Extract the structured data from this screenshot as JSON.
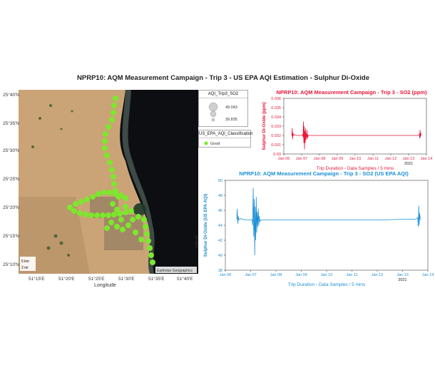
{
  "title": "NPRP10: AQM Measurement Campaign - Trip 3 - US EPA AQI Estimation - Sulphur Di-Oxide",
  "map": {
    "lat_ticks": [
      "25°40'N",
      "25°35'N",
      "25°30'N",
      "25°25'N",
      "25°20'N",
      "25°15'N",
      "25°10'N"
    ],
    "lon_ticks": [
      "51°15'E",
      "51°20'E",
      "51°25'E",
      "51°30'E",
      "51°35'E",
      "51°40'E"
    ],
    "xlabel": "Longitude",
    "ylabel": "Latitude",
    "scale_km": "5 km",
    "scale_mi": "2 mi",
    "attribution": "Earthstar Geographics",
    "track_color": "#7be82c"
  },
  "legend_size": {
    "title": "AQI_Trip3_SO2",
    "max": "49.043",
    "min": "39.835"
  },
  "legend_class": {
    "title": "US_EPA_AQI_Classification",
    "item": "Good",
    "color": "#7be82c"
  },
  "chart_data": [
    {
      "type": "line",
      "title": "NPRP10: AQM Measurement Campaign - Trip 3 - SO2 (ppm)",
      "xlabel": "Trip Duration - Data Samples / 5 mins",
      "ylabel": "Sulphur Di-Oxide (ppm)",
      "x_ticks": [
        "Jan 06",
        "Jan 07",
        "Jan 08",
        "Jan 09",
        "Jan 10",
        "Jan 11",
        "Jan 12",
        "Jan 13",
        "Jan 14"
      ],
      "x_year": "2021",
      "y_ticks": [
        "0.03",
        "0.031",
        "0.032",
        "0.033",
        "0.034",
        "0.035",
        "0.036"
      ],
      "ylim": [
        0.03,
        0.036
      ],
      "color": "#e8183a",
      "series": [
        {
          "values": [
            [
              0.45,
              0.0319
            ],
            [
              0.47,
              0.0328
            ],
            [
              0.49,
              0.0316
            ],
            [
              0.51,
              0.0323
            ],
            [
              0.53,
              0.032
            ],
            [
              0.56,
              0.032
            ],
            [
              0.6,
              0.0321
            ],
            [
              0.7,
              0.032
            ],
            [
              0.8,
              0.032
            ],
            [
              0.9,
              0.032
            ],
            [
              1.0,
              0.032
            ],
            [
              1.05,
              0.0321
            ],
            [
              1.08,
              0.0318
            ],
            [
              1.1,
              0.0335
            ],
            [
              1.12,
              0.0312
            ],
            [
              1.14,
              0.033
            ],
            [
              1.16,
              0.0305
            ],
            [
              1.18,
              0.0325
            ],
            [
              1.2,
              0.0312
            ],
            [
              1.22,
              0.0328
            ],
            [
              1.24,
              0.0315
            ],
            [
              1.26,
              0.0322
            ],
            [
              1.28,
              0.0318
            ],
            [
              1.3,
              0.0326
            ],
            [
              1.32,
              0.0316
            ],
            [
              1.34,
              0.0321
            ],
            [
              1.36,
              0.0319
            ],
            [
              1.4,
              0.032
            ],
            [
              2.0,
              0.032
            ],
            [
              3.0,
              0.032
            ],
            [
              4.0,
              0.032
            ],
            [
              5.0,
              0.032
            ],
            [
              6.0,
              0.032
            ],
            [
              7.0,
              0.032
            ],
            [
              7.5,
              0.032
            ],
            [
              7.6,
              0.0321
            ],
            [
              7.62,
              0.0317
            ],
            [
              7.64,
              0.0326
            ],
            [
              7.66,
              0.0318
            ],
            [
              7.68,
              0.0323
            ],
            [
              7.7,
              0.032
            ]
          ]
        }
      ]
    },
    {
      "type": "line",
      "title": "NPRP10: AQM Measurement Campaign - Trip 3 - SO2 (US EPA AQI)",
      "xlabel": "Trip Duration - Data Samples / 5 mins",
      "ylabel": "Sulphur Di-Oxide (US EPA AQI)",
      "x_ticks": [
        "Jan 06",
        "Jan 07",
        "Jan 08",
        "Jan 09",
        "Jan 10",
        "Jan 11",
        "Jan 12",
        "Jan 13",
        "Jan 14"
      ],
      "x_year": "2021",
      "y_ticks": [
        "38",
        "40",
        "42",
        "44",
        "46",
        "48",
        "50"
      ],
      "ylim": [
        38,
        50
      ],
      "color": "#1a8fd6",
      "series": [
        {
          "values": [
            [
              0.45,
              44.8
            ],
            [
              0.47,
              46.2
            ],
            [
              0.49,
              44.2
            ],
            [
              0.51,
              45.2
            ],
            [
              0.53,
              44.7
            ],
            [
              0.56,
              44.8
            ],
            [
              0.6,
              44.9
            ],
            [
              0.7,
              44.8
            ],
            [
              0.8,
              44.7
            ],
            [
              0.9,
              44.7
            ],
            [
              1.0,
              44.7
            ],
            [
              1.05,
              44.8
            ],
            [
              1.08,
              44.0
            ],
            [
              1.1,
              49.0
            ],
            [
              1.12,
              42.5
            ],
            [
              1.14,
              47.5
            ],
            [
              1.16,
              40.0
            ],
            [
              1.18,
              46.5
            ],
            [
              1.2,
              42.0
            ],
            [
              1.22,
              47.8
            ],
            [
              1.24,
              43.0
            ],
            [
              1.26,
              45.8
            ],
            [
              1.28,
              43.8
            ],
            [
              1.3,
              46.2
            ],
            [
              1.32,
              44.0
            ],
            [
              1.34,
              45.2
            ],
            [
              1.36,
              44.5
            ],
            [
              1.4,
              44.7
            ],
            [
              2.0,
              44.7
            ],
            [
              3.0,
              44.7
            ],
            [
              4.0,
              44.7
            ],
            [
              5.0,
              44.7
            ],
            [
              6.0,
              44.7
            ],
            [
              7.0,
              44.8
            ],
            [
              7.5,
              44.8
            ],
            [
              7.6,
              45.0
            ],
            [
              7.62,
              43.8
            ],
            [
              7.64,
              46.6
            ],
            [
              7.66,
              44.0
            ],
            [
              7.68,
              45.6
            ],
            [
              7.7,
              44.7
            ]
          ]
        }
      ]
    }
  ]
}
